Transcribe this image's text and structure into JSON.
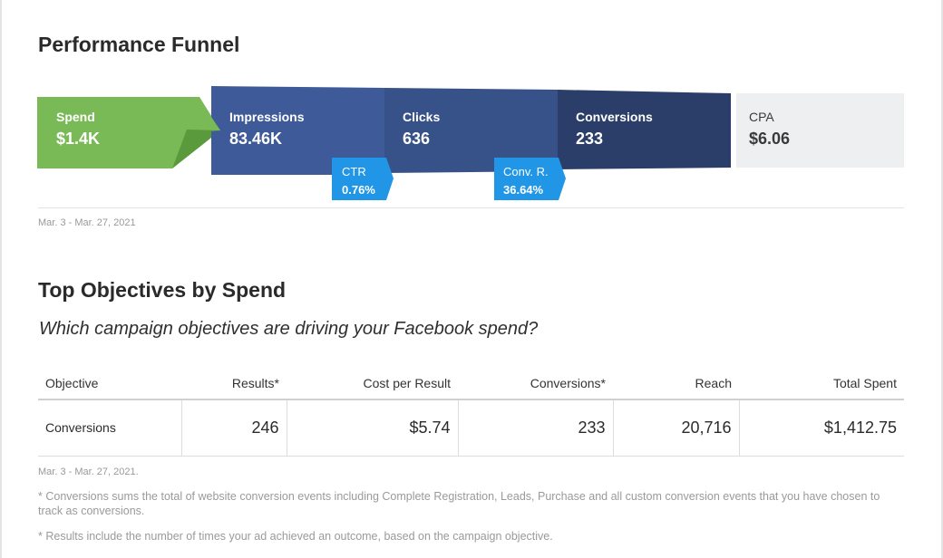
{
  "funnel_section": {
    "title": "Performance Funnel",
    "steps": [
      {
        "label": "Spend",
        "value": "$1.4K"
      },
      {
        "label": "Impressions",
        "value": "83.46K"
      },
      {
        "label": "Clicks",
        "value": "636"
      },
      {
        "label": "Conversions",
        "value": "233"
      },
      {
        "label": "CPA",
        "value": "$6.06"
      }
    ],
    "rates": [
      {
        "label": "CTR",
        "value": "0.76%"
      },
      {
        "label": "Conv. R.",
        "value": "36.64%"
      }
    ],
    "date_range": "Mar. 3 - Mar. 27, 2021",
    "colors": {
      "spend": "#79b956",
      "spend_fold": "#5b9a3c",
      "impressions": "#3e5a99",
      "clicks": "#375189",
      "conversions": "#2b3e69",
      "cpa_bg": "#eeeff1",
      "rate_badge": "#2196e6"
    }
  },
  "objectives_section": {
    "title": "Top Objectives by Spend",
    "question": "Which campaign objectives are driving your Facebook spend?",
    "columns": [
      "Objective",
      "Results*",
      "Cost per Result",
      "Conversions*",
      "Reach",
      "Total Spent"
    ],
    "rows": [
      [
        "Conversions",
        "246",
        "$5.74",
        "233",
        "20,716",
        "$1,412.75"
      ]
    ],
    "date_range": "Mar. 3 - Mar. 27, 2021.",
    "footnotes": [
      "* Conversions sums the total of website conversion events including Complete Registration, Leads, Purchase and all custom conversion events that you have chosen to track as conversions.",
      "* Results include the number of times your ad achieved an outcome, based on the campaign objective."
    ]
  }
}
